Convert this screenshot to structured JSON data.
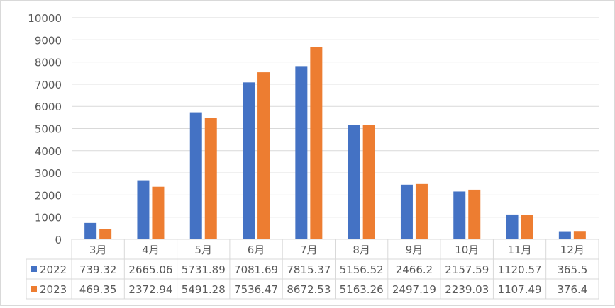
{
  "chart_data": {
    "type": "bar",
    "title": "",
    "xlabel": "",
    "ylabel": "",
    "ylim": [
      0,
      10000
    ],
    "yticks": [
      0,
      1000,
      2000,
      3000,
      4000,
      5000,
      6000,
      7000,
      8000,
      9000,
      10000
    ],
    "grid": true,
    "legend": "data-table",
    "categories": [
      "3月",
      "4月",
      "5月",
      "6月",
      "7月",
      "8月",
      "9月",
      "10月",
      "11月",
      "12月"
    ],
    "series": [
      {
        "name": "2022",
        "color": "#4472C4",
        "values": [
          739.32,
          2665.06,
          5731.89,
          7081.69,
          7815.37,
          5156.52,
          2466.2,
          2157.59,
          1120.57,
          365.5
        ],
        "labels": [
          "739.32",
          "2665.06",
          "5731.89",
          "7081.69",
          "7815.37",
          "5156.52",
          "2466.2",
          "2157.59",
          "1120.57",
          "365.5"
        ]
      },
      {
        "name": "2023",
        "color": "#ED7D31",
        "values": [
          469.35,
          2372.94,
          5491.28,
          7536.47,
          8672.53,
          5163.26,
          2497.19,
          2239.03,
          1107.49,
          376.4
        ],
        "labels": [
          "469.35",
          "2372.94",
          "5491.28",
          "7536.47",
          "8672.53",
          "5163.26",
          "2497.19",
          "2239.03",
          "1107.49",
          "376.4"
        ]
      }
    ]
  }
}
